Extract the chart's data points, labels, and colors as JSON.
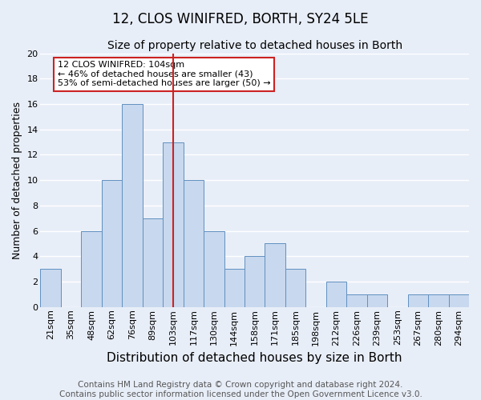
{
  "title": "12, CLOS WINIFRED, BORTH, SY24 5LE",
  "subtitle": "Size of property relative to detached houses in Borth",
  "xlabel": "Distribution of detached houses by size in Borth",
  "ylabel": "Number of detached properties",
  "categories": [
    "21sqm",
    "35sqm",
    "48sqm",
    "62sqm",
    "76sqm",
    "89sqm",
    "103sqm",
    "117sqm",
    "130sqm",
    "144sqm",
    "158sqm",
    "171sqm",
    "185sqm",
    "198sqm",
    "212sqm",
    "226sqm",
    "239sqm",
    "253sqm",
    "267sqm",
    "280sqm",
    "294sqm"
  ],
  "values": [
    3,
    0,
    6,
    10,
    16,
    7,
    13,
    10,
    6,
    3,
    4,
    5,
    3,
    0,
    2,
    1,
    1,
    0,
    1,
    1,
    1
  ],
  "bar_color": "#c8d8ee",
  "bar_edge_color": "#6090c0",
  "vline_x_index": 6,
  "vline_color": "#cc2222",
  "ylim": [
    0,
    20
  ],
  "yticks": [
    0,
    2,
    4,
    6,
    8,
    10,
    12,
    14,
    16,
    18,
    20
  ],
  "annotation_text": "12 CLOS WINIFRED: 104sqm\n← 46% of detached houses are smaller (43)\n53% of semi-detached houses are larger (50) →",
  "annotation_box_color": "#ffffff",
  "annotation_box_edge": "#cc2222",
  "footer_text": "Contains HM Land Registry data © Crown copyright and database right 2024.\nContains public sector information licensed under the Open Government Licence v3.0.",
  "background_color": "#e8eef8",
  "grid_color": "#ffffff",
  "title_fontsize": 12,
  "subtitle_fontsize": 10,
  "xlabel_fontsize": 11,
  "ylabel_fontsize": 9,
  "tick_fontsize": 8,
  "footer_fontsize": 7.5
}
